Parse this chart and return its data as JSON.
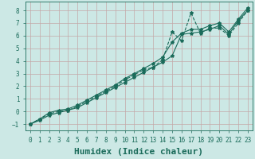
{
  "xlabel": "Humidex (Indice chaleur)",
  "bg_color": "#cce8e5",
  "grid_color": "#c4a8a8",
  "line_color": "#1a6b5a",
  "xlim": [
    -0.5,
    23.5
  ],
  "ylim": [
    -1.5,
    8.7
  ],
  "xticks": [
    0,
    1,
    2,
    3,
    4,
    5,
    6,
    7,
    8,
    9,
    10,
    11,
    12,
    13,
    14,
    15,
    16,
    17,
    18,
    19,
    20,
    21,
    22,
    23
  ],
  "yticks": [
    -1,
    0,
    1,
    2,
    3,
    4,
    5,
    6,
    7,
    8
  ],
  "line_smooth1_x": [
    0,
    1,
    2,
    3,
    4,
    5,
    6,
    7,
    8,
    9,
    10,
    11,
    12,
    13,
    14,
    15,
    16,
    17,
    18,
    19,
    20,
    21,
    22,
    23
  ],
  "line_smooth1_y": [
    -1.0,
    -0.7,
    -0.3,
    -0.1,
    0.1,
    0.3,
    0.7,
    1.1,
    1.5,
    1.9,
    2.3,
    2.7,
    3.1,
    3.5,
    3.9,
    4.4,
    6.1,
    6.2,
    6.3,
    6.5,
    6.8,
    6.1,
    7.2,
    8.0
  ],
  "line_smooth2_x": [
    0,
    1,
    2,
    3,
    4,
    5,
    6,
    7,
    8,
    9,
    10,
    11,
    12,
    13,
    14,
    15,
    16,
    17,
    18,
    19,
    20,
    21,
    22,
    23
  ],
  "line_smooth2_y": [
    -1.0,
    -0.6,
    -0.1,
    0.1,
    0.2,
    0.5,
    0.9,
    1.3,
    1.7,
    2.1,
    2.6,
    3.0,
    3.4,
    3.8,
    4.3,
    5.5,
    6.2,
    6.5,
    6.5,
    6.8,
    7.0,
    6.3,
    7.3,
    8.2
  ],
  "line_jagged_x": [
    0,
    1,
    2,
    3,
    4,
    5,
    6,
    7,
    8,
    9,
    10,
    11,
    12,
    13,
    14,
    15,
    16,
    17,
    18,
    19,
    20,
    21,
    22,
    23
  ],
  "line_jagged_y": [
    -1.0,
    -0.6,
    -0.2,
    0.0,
    0.1,
    0.4,
    0.8,
    1.2,
    1.6,
    2.0,
    2.5,
    2.9,
    3.3,
    3.5,
    4.1,
    6.3,
    5.6,
    7.8,
    6.2,
    6.6,
    6.6,
    6.0,
    7.0,
    8.0
  ],
  "marker": "*",
  "markersize": 3,
  "linewidth": 0.8,
  "xlabel_fontsize": 8,
  "tick_fontsize": 5.5
}
